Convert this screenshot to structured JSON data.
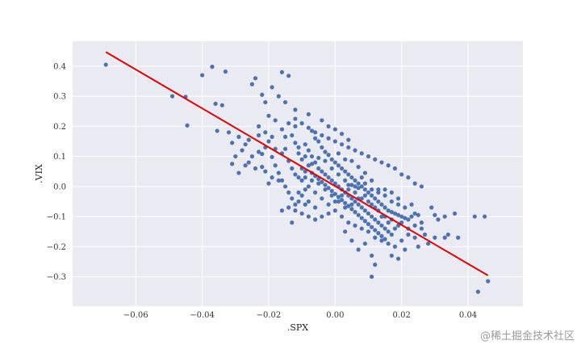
{
  "chart_data": {
    "type": "scatter",
    "title": "",
    "xlabel": ".SPX",
    "ylabel": ".VIX",
    "xlim": [
      -0.079,
      0.0565
    ],
    "ylim": [
      -0.398,
      0.483
    ],
    "xticks": [
      -0.06,
      -0.04,
      -0.02,
      0.0,
      0.02,
      0.04
    ],
    "xtick_labels": [
      "−0.06",
      "−0.04",
      "−0.02",
      "0.00",
      "0.02",
      "0.04"
    ],
    "yticks": [
      -0.3,
      -0.2,
      -0.1,
      0.0,
      0.1,
      0.2,
      0.3,
      0.4
    ],
    "ytick_labels": [
      "−0.3",
      "−0.2",
      "−0.1",
      "0.0",
      "0.1",
      "0.2",
      "0.3",
      "0.4"
    ],
    "grid": true,
    "style": "seaborn",
    "colors": {
      "points": "#4c72b0",
      "line": "#e00000",
      "background": "#eaeaf2",
      "grid": "#ffffff"
    },
    "regression_line": {
      "x": [
        -0.069,
        0.046
      ],
      "y": [
        0.447,
        -0.296
      ]
    },
    "points": [
      [
        -0.069,
        0.405
      ],
      [
        -0.049,
        0.3
      ],
      [
        -0.045,
        0.298
      ],
      [
        -0.0445,
        0.203
      ],
      [
        -0.04,
        0.37
      ],
      [
        -0.037,
        0.398
      ],
      [
        -0.033,
        0.382
      ],
      [
        -0.036,
        0.275
      ],
      [
        -0.034,
        0.27
      ],
      [
        -0.0355,
        0.185
      ],
      [
        -0.032,
        0.18
      ],
      [
        -0.031,
        0.145
      ],
      [
        -0.029,
        0.165
      ],
      [
        -0.025,
        0.34
      ],
      [
        -0.024,
        0.36
      ],
      [
        -0.022,
        0.305
      ],
      [
        -0.021,
        0.28
      ],
      [
        -0.019,
        0.33
      ],
      [
        -0.016,
        0.38
      ],
      [
        -0.014,
        0.368
      ],
      [
        -0.015,
        0.28
      ],
      [
        -0.012,
        0.255
      ],
      [
        -0.017,
        0.3
      ],
      [
        -0.02,
        0.235
      ],
      [
        -0.018,
        0.22
      ],
      [
        -0.023,
        0.2
      ],
      [
        -0.026,
        0.155
      ],
      [
        -0.028,
        0.12
      ],
      [
        -0.03,
        0.1
      ],
      [
        -0.031,
        0.075
      ],
      [
        -0.029,
        0.045
      ],
      [
        -0.026,
        0.08
      ],
      [
        -0.024,
        0.06
      ],
      [
        -0.022,
        0.108
      ],
      [
        -0.021,
        0.05
      ],
      [
        -0.023,
        0.115
      ],
      [
        -0.019,
        0.098
      ],
      [
        -0.018,
        0.125
      ],
      [
        -0.016,
        0.19
      ],
      [
        -0.015,
        0.165
      ],
      [
        -0.013,
        0.17
      ],
      [
        -0.012,
        0.145
      ],
      [
        -0.011,
        0.11
      ],
      [
        -0.01,
        0.09
      ],
      [
        -0.009,
        0.14
      ],
      [
        -0.008,
        0.12
      ],
      [
        -0.007,
        0.185
      ],
      [
        -0.006,
        0.16
      ],
      [
        -0.005,
        0.15
      ],
      [
        -0.004,
        0.13
      ],
      [
        -0.003,
        0.115
      ],
      [
        -0.002,
        0.105
      ],
      [
        -0.001,
        0.09
      ],
      [
        0.0,
        0.08
      ],
      [
        0.001,
        0.07
      ],
      [
        0.002,
        0.06
      ],
      [
        0.003,
        0.05
      ],
      [
        0.004,
        0.04
      ],
      [
        0.005,
        0.03
      ],
      [
        0.006,
        0.02
      ],
      [
        0.007,
        0.01
      ],
      [
        0.008,
        0.0
      ],
      [
        0.009,
        -0.01
      ],
      [
        0.01,
        -0.02
      ],
      [
        0.011,
        -0.03
      ],
      [
        0.012,
        -0.04
      ],
      [
        0.013,
        -0.05
      ],
      [
        0.014,
        -0.06
      ],
      [
        0.015,
        -0.07
      ],
      [
        0.016,
        -0.08
      ],
      [
        0.017,
        -0.085
      ],
      [
        0.018,
        -0.09
      ],
      [
        0.019,
        -0.095
      ],
      [
        0.02,
        -0.1
      ],
      [
        0.021,
        -0.105
      ],
      [
        0.022,
        -0.11
      ],
      [
        0.023,
        -0.1
      ],
      [
        0.024,
        -0.09
      ],
      [
        0.025,
        -0.095
      ],
      [
        0.026,
        -0.12
      ],
      [
        -0.014,
        0.085
      ],
      [
        -0.013,
        0.06
      ],
      [
        -0.012,
        0.04
      ],
      [
        -0.011,
        0.03
      ],
      [
        -0.01,
        0.02
      ],
      [
        -0.009,
        0.05
      ],
      [
        -0.008,
        0.07
      ],
      [
        -0.007,
        0.1
      ],
      [
        -0.006,
        0.08
      ],
      [
        -0.005,
        0.06
      ],
      [
        -0.004,
        0.05
      ],
      [
        -0.003,
        0.04
      ],
      [
        -0.002,
        0.03
      ],
      [
        -0.001,
        0.02
      ],
      [
        0.0,
        0.01
      ],
      [
        0.001,
        0.0
      ],
      [
        0.002,
        -0.01
      ],
      [
        0.003,
        -0.02
      ],
      [
        0.004,
        -0.03
      ],
      [
        0.005,
        -0.04
      ],
      [
        0.006,
        -0.05
      ],
      [
        0.007,
        -0.06
      ],
      [
        0.008,
        -0.07
      ],
      [
        0.009,
        -0.08
      ],
      [
        0.01,
        -0.09
      ],
      [
        0.011,
        -0.1
      ],
      [
        0.012,
        -0.11
      ],
      [
        0.013,
        -0.12
      ],
      [
        0.014,
        -0.13
      ],
      [
        0.015,
        -0.14
      ],
      [
        0.016,
        -0.15
      ],
      [
        0.017,
        -0.16
      ],
      [
        -0.016,
        0.02
      ],
      [
        -0.015,
        0.0
      ],
      [
        -0.014,
        -0.02
      ],
      [
        -0.013,
        -0.04
      ],
      [
        -0.012,
        -0.06
      ],
      [
        -0.011,
        -0.05
      ],
      [
        -0.01,
        -0.03
      ],
      [
        -0.009,
        -0.01
      ],
      [
        -0.008,
        0.0
      ],
      [
        -0.007,
        0.02
      ],
      [
        -0.006,
        0.035
      ],
      [
        -0.005,
        0.025
      ],
      [
        -0.004,
        0.015
      ],
      [
        -0.003,
        0.005
      ],
      [
        -0.002,
        -0.005
      ],
      [
        -0.001,
        -0.015
      ],
      [
        0.0,
        -0.025
      ],
      [
        0.001,
        -0.035
      ],
      [
        0.002,
        -0.045
      ],
      [
        0.003,
        -0.055
      ],
      [
        0.004,
        -0.065
      ],
      [
        0.005,
        -0.075
      ],
      [
        0.006,
        -0.085
      ],
      [
        0.007,
        -0.095
      ],
      [
        0.008,
        -0.105
      ],
      [
        0.009,
        -0.115
      ],
      [
        0.01,
        -0.125
      ],
      [
        0.011,
        -0.135
      ],
      [
        0.012,
        -0.145
      ],
      [
        0.013,
        -0.155
      ],
      [
        0.014,
        -0.165
      ],
      [
        0.015,
        -0.175
      ],
      [
        -0.012,
        0.2
      ],
      [
        -0.01,
        0.21
      ],
      [
        -0.008,
        0.195
      ],
      [
        -0.006,
        0.18
      ],
      [
        -0.004,
        0.17
      ],
      [
        -0.002,
        0.16
      ],
      [
        0.0,
        0.15
      ],
      [
        0.002,
        0.14
      ],
      [
        0.004,
        0.13
      ],
      [
        0.006,
        0.12
      ],
      [
        0.008,
        0.11
      ],
      [
        0.01,
        0.1
      ],
      [
        0.012,
        0.09
      ],
      [
        0.014,
        0.08
      ],
      [
        0.016,
        0.07
      ],
      [
        0.018,
        0.06
      ],
      [
        0.02,
        0.04
      ],
      [
        0.022,
        0.03
      ],
      [
        0.024,
        0.01
      ],
      [
        0.026,
        0.0
      ],
      [
        -0.016,
        -0.08
      ],
      [
        -0.014,
        -0.07
      ],
      [
        -0.012,
        -0.08
      ],
      [
        -0.01,
        -0.09
      ],
      [
        -0.008,
        -0.1
      ],
      [
        -0.006,
        -0.11
      ],
      [
        -0.004,
        -0.1
      ],
      [
        -0.002,
        -0.09
      ],
      [
        0.0,
        -0.08
      ],
      [
        0.002,
        -0.1
      ],
      [
        0.004,
        -0.12
      ],
      [
        0.006,
        -0.13
      ],
      [
        0.008,
        -0.14
      ],
      [
        0.01,
        -0.15
      ],
      [
        0.012,
        -0.17
      ],
      [
        0.014,
        -0.18
      ],
      [
        0.016,
        -0.19
      ],
      [
        0.018,
        -0.2
      ],
      [
        0.02,
        -0.18
      ],
      [
        0.022,
        -0.16
      ],
      [
        -0.013,
        -0.12
      ],
      [
        0.003,
        -0.15
      ],
      [
        0.005,
        -0.18
      ],
      [
        0.007,
        -0.21
      ],
      [
        0.009,
        -0.19
      ],
      [
        0.011,
        -0.23
      ],
      [
        0.012,
        -0.26
      ],
      [
        0.011,
        -0.3
      ],
      [
        0.017,
        -0.23
      ],
      [
        0.019,
        -0.24
      ],
      [
        0.021,
        -0.21
      ],
      [
        0.024,
        -0.17
      ],
      [
        0.025,
        -0.2
      ],
      [
        0.028,
        -0.19
      ],
      [
        0.03,
        -0.17
      ],
      [
        0.03,
        -0.095
      ],
      [
        0.029,
        -0.07
      ],
      [
        0.031,
        -0.11
      ],
      [
        0.033,
        -0.1
      ],
      [
        0.033,
        -0.17
      ],
      [
        0.034,
        -0.16
      ],
      [
        0.036,
        -0.09
      ],
      [
        0.037,
        -0.17
      ],
      [
        0.042,
        -0.1
      ],
      [
        0.045,
        -0.1
      ],
      [
        0.043,
        -0.35
      ],
      [
        0.046,
        -0.315
      ],
      [
        0.026,
        -0.14
      ],
      [
        0.027,
        -0.16
      ],
      [
        0.024,
        -0.13
      ],
      [
        0.022,
        -0.14
      ],
      [
        0.02,
        -0.12
      ],
      [
        -0.01,
        0.06
      ],
      [
        -0.009,
        0.03
      ],
      [
        -0.007,
        0.045
      ],
      [
        -0.005,
        0.01
      ],
      [
        -0.003,
        -0.01
      ],
      [
        -0.001,
        -0.03
      ],
      [
        0.001,
        -0.05
      ],
      [
        0.003,
        -0.07
      ],
      [
        0.005,
        -0.06
      ],
      [
        0.007,
        -0.04
      ],
      [
        0.009,
        -0.03
      ],
      [
        0.011,
        -0.06
      ],
      [
        0.013,
        -0.08
      ],
      [
        0.015,
        -0.1
      ],
      [
        0.017,
        -0.11
      ],
      [
        0.019,
        -0.13
      ],
      [
        -0.011,
        0.13
      ],
      [
        -0.009,
        0.1
      ],
      [
        -0.007,
        0.075
      ],
      [
        -0.005,
        0.095
      ],
      [
        -0.003,
        0.085
      ],
      [
        -0.001,
        0.06
      ],
      [
        0.001,
        0.04
      ],
      [
        0.003,
        0.02
      ],
      [
        0.005,
        0.005
      ],
      [
        0.007,
        -0.005
      ],
      [
        0.009,
        0.01
      ],
      [
        0.011,
        0.02
      ],
      [
        0.013,
        -0.01
      ],
      [
        0.015,
        -0.03
      ],
      [
        0.017,
        -0.05
      ],
      [
        0.019,
        -0.06
      ],
      [
        -0.002,
        0.2
      ],
      [
        0.0,
        0.19
      ],
      [
        0.002,
        0.175
      ],
      [
        0.004,
        0.155
      ],
      [
        -0.02,
        0.15
      ],
      [
        -0.021,
        0.13
      ],
      [
        -0.025,
        0.1
      ],
      [
        -0.027,
        0.07
      ],
      [
        -0.018,
        0.07
      ],
      [
        -0.017,
        0.045
      ],
      [
        -0.016,
        0.11
      ],
      [
        -0.015,
        0.125
      ],
      [
        0.001,
        0.11
      ],
      [
        0.003,
        0.09
      ],
      [
        0.005,
        0.085
      ],
      [
        0.007,
        0.065
      ],
      [
        0.009,
        0.045
      ],
      [
        0.011,
        -0.01
      ],
      [
        0.013,
        -0.02
      ],
      [
        0.015,
        -0.01
      ],
      [
        0.017,
        -0.02
      ],
      [
        0.019,
        -0.04
      ],
      [
        0.021,
        -0.07
      ],
      [
        0.023,
        -0.06
      ],
      [
        -0.006,
        -0.02
      ],
      [
        -0.004,
        -0.04
      ],
      [
        -0.002,
        -0.06
      ],
      [
        0.0,
        -0.05
      ],
      [
        0.002,
        -0.03
      ],
      [
        0.004,
        -0.01
      ],
      [
        0.006,
        0.0
      ],
      [
        0.008,
        0.03
      ],
      [
        -0.008,
        -0.05
      ],
      [
        -0.006,
        -0.07
      ],
      [
        -0.009,
        -0.06
      ],
      [
        -0.011,
        -0.02
      ],
      [
        -0.019,
        0.03
      ],
      [
        -0.017,
        0.02
      ],
      [
        -0.02,
        0.01
      ],
      [
        -0.022,
        0.065
      ],
      [
        0.016,
        -0.12
      ],
      [
        0.018,
        -0.14
      ],
      [
        0.014,
        -0.1
      ],
      [
        0.012,
        -0.07
      ],
      [
        0.01,
        -0.05
      ],
      [
        0.008,
        -0.04
      ],
      [
        0.006,
        -0.02
      ],
      [
        0.004,
        0.005
      ],
      [
        -0.004,
        0.22
      ],
      [
        -0.008,
        0.24
      ],
      [
        -0.012,
        0.225
      ],
      [
        -0.014,
        0.21
      ],
      [
        -0.019,
        0.165
      ],
      [
        -0.021,
        0.18
      ],
      [
        -0.023,
        0.17
      ],
      [
        -0.027,
        0.14
      ]
    ]
  }
}
